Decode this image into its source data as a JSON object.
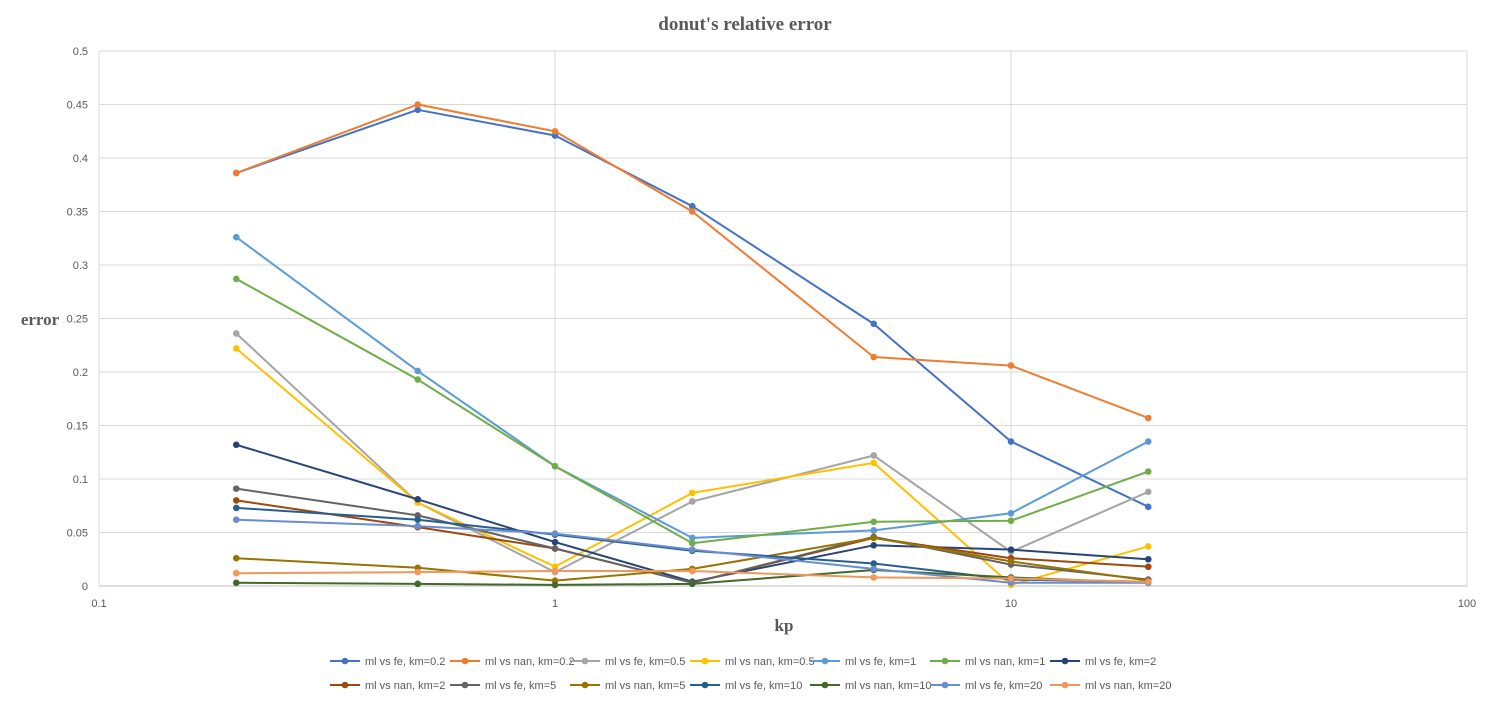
{
  "chart_data": {
    "type": "line",
    "title": "donut's relative error",
    "xlabel": "kp",
    "ylabel": "error",
    "x_scale": "log",
    "xlim": [
      0.1,
      100
    ],
    "ylim": [
      0,
      0.5
    ],
    "x_ticks": [
      "0.1",
      "1",
      "10",
      "100"
    ],
    "y_ticks": [
      "0",
      "0.05",
      "0.1",
      "0.15",
      "0.2",
      "0.25",
      "0.3",
      "0.35",
      "0.4",
      "0.45",
      "0.5"
    ],
    "grid": true,
    "legend_position": "bottom",
    "x": [
      0.2,
      0.5,
      1,
      2,
      5,
      10,
      20
    ],
    "series": [
      {
        "name": "ml vs fe, km=0.2",
        "color": "#4472C4",
        "values": [
          0.386,
          0.445,
          0.421,
          0.355,
          0.245,
          0.135,
          0.074
        ]
      },
      {
        "name": "ml vs nan, km=0.2",
        "color": "#ED7D31",
        "values": [
          0.386,
          0.45,
          0.425,
          0.35,
          0.214,
          0.206,
          0.157
        ]
      },
      {
        "name": "ml vs fe, km=0.5",
        "color": "#A5A5A5",
        "values": [
          0.236,
          0.078,
          0.013,
          0.079,
          0.122,
          0.032,
          0.088
        ]
      },
      {
        "name": "ml vs nan, km=0.5",
        "color": "#FFC000",
        "values": [
          0.222,
          0.078,
          0.018,
          0.087,
          0.115,
          0.001,
          0.037
        ]
      },
      {
        "name": "ml vs fe, km=1",
        "color": "#5B9BD5",
        "values": [
          0.326,
          0.201,
          0.112,
          0.045,
          0.052,
          0.068,
          0.135
        ]
      },
      {
        "name": "ml vs nan, km=1",
        "color": "#70AD47",
        "values": [
          0.287,
          0.193,
          0.112,
          0.04,
          0.06,
          0.061,
          0.107
        ]
      },
      {
        "name": "ml vs fe, km=2",
        "color": "#264478",
        "values": [
          0.132,
          0.081,
          0.041,
          0.004,
          0.038,
          0.034,
          0.025
        ]
      },
      {
        "name": "ml vs nan, km=2",
        "color": "#9E480E",
        "values": [
          0.08,
          0.055,
          0.035,
          0.003,
          0.045,
          0.026,
          0.018
        ]
      },
      {
        "name": "ml vs fe, km=5",
        "color": "#636363",
        "values": [
          0.091,
          0.066,
          0.035,
          0.003,
          0.046,
          0.02,
          0.006
        ]
      },
      {
        "name": "ml vs nan, km=5",
        "color": "#997300",
        "values": [
          0.026,
          0.017,
          0.005,
          0.016,
          0.045,
          0.023,
          0.005
        ]
      },
      {
        "name": "ml vs fe, km=10",
        "color": "#255E91",
        "values": [
          0.073,
          0.062,
          0.048,
          0.033,
          0.021,
          0.006,
          0.004
        ]
      },
      {
        "name": "ml vs nan, km=10",
        "color": "#43682B",
        "values": [
          0.003,
          0.002,
          0.001,
          0.002,
          0.015,
          0.008,
          0.003
        ]
      },
      {
        "name": "ml vs fe, km=20",
        "color": "#698ED0",
        "values": [
          0.062,
          0.056,
          0.049,
          0.034,
          0.016,
          0.003,
          0.003
        ]
      },
      {
        "name": "ml vs nan, km=20",
        "color": "#F1975A",
        "values": [
          0.012,
          0.013,
          0.014,
          0.014,
          0.008,
          0.007,
          0.004
        ]
      }
    ]
  }
}
